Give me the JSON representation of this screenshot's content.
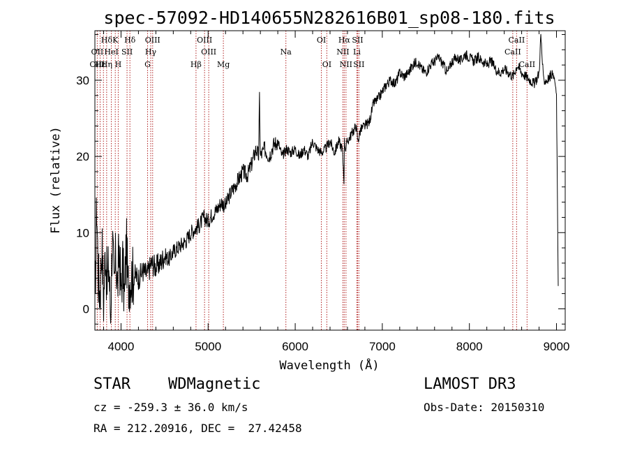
{
  "chart_data": {
    "type": "line",
    "title": "spec-57092-HD140655N282616B01_sp08-180.fits",
    "xlabel": "Wavelength (Å)",
    "ylabel": "Flux (relative)",
    "xlim": [
      3700,
      9100
    ],
    "ylim": [
      -2.8,
      36.5
    ],
    "xticks": [
      4000,
      5000,
      6000,
      7000,
      8000,
      9000
    ],
    "yticks": [
      0,
      10,
      20,
      30
    ],
    "series": [
      {
        "name": "flux",
        "x": [
          3700,
          3720,
          3740,
          3760,
          3780,
          3800,
          3820,
          3840,
          3860,
          3880,
          3900,
          3920,
          3940,
          3960,
          3980,
          4000,
          4020,
          4040,
          4060,
          4080,
          4100,
          4150,
          4200,
          4250,
          4300,
          4350,
          4400,
          4450,
          4500,
          4550,
          4600,
          4650,
          4700,
          4750,
          4800,
          4850,
          4900,
          4950,
          5000,
          5050,
          5100,
          5150,
          5200,
          5250,
          5300,
          5350,
          5400,
          5450,
          5500,
          5550,
          5580,
          5590,
          5600,
          5650,
          5700,
          5750,
          5800,
          5850,
          5900,
          5950,
          6000,
          6050,
          6100,
          6150,
          6200,
          6250,
          6300,
          6350,
          6400,
          6450,
          6500,
          6540,
          6560,
          6565,
          6580,
          6600,
          6650,
          6700,
          6720,
          6750,
          6800,
          6850,
          6900,
          6950,
          7000,
          7050,
          7100,
          7150,
          7200,
          7250,
          7300,
          7350,
          7400,
          7450,
          7500,
          7550,
          7600,
          7650,
          7700,
          7750,
          7800,
          7850,
          7900,
          7950,
          8000,
          8050,
          8100,
          8150,
          8200,
          8250,
          8300,
          8350,
          8400,
          8450,
          8500,
          8550,
          8600,
          8650,
          8700,
          8750,
          8800,
          8820,
          8850,
          8900,
          8950,
          8980,
          9000,
          9010,
          9020
        ],
        "values": [
          0,
          14,
          4,
          2,
          9,
          1,
          8,
          3,
          6,
          -1,
          10,
          2,
          7,
          3,
          8,
          2,
          6,
          1,
          9,
          3,
          4,
          4.5,
          4,
          5,
          4.5,
          6,
          5.5,
          6,
          7,
          6.5,
          7.5,
          8,
          8.5,
          9,
          10,
          10.5,
          11,
          12,
          11.5,
          12.5,
          13,
          14,
          13.5,
          15,
          16,
          17,
          18,
          17.5,
          19,
          21,
          20,
          28,
          20,
          21,
          20,
          21.5,
          22,
          20,
          21,
          20.5,
          21,
          20,
          21,
          20,
          22,
          21,
          20.5,
          21,
          22,
          20.5,
          22,
          21,
          17,
          22,
          21,
          22,
          23,
          24,
          22,
          23.5,
          24,
          24.5,
          27,
          27.5,
          28.5,
          29.5,
          30,
          29.5,
          31,
          30.5,
          31,
          32,
          32.5,
          31.5,
          31,
          32,
          32.5,
          33,
          32,
          31,
          32.5,
          33,
          32.5,
          33.5,
          33,
          32.5,
          33,
          32.5,
          32,
          32.5,
          31.5,
          31,
          31.5,
          31,
          30.5,
          32,
          31,
          30.5,
          30,
          29.5,
          31,
          36,
          30,
          30,
          31,
          30,
          28,
          15,
          3
        ]
      }
    ],
    "spectral_lines": [
      {
        "name": "Hδ",
        "row": 1,
        "x": 3835
      },
      {
        "name": "K",
        "row": 1,
        "x": 3934
      },
      {
        "name": "Hδ",
        "row": 1,
        "x": 4102
      },
      {
        "name": "OIII",
        "row": 1,
        "x": 4363
      },
      {
        "name": "OIII",
        "row": 1,
        "x": 4959
      },
      {
        "name": "OI",
        "row": 1,
        "x": 6300
      },
      {
        "name": "Hα",
        "row": 1,
        "x": 6563
      },
      {
        "name": "SII",
        "row": 1,
        "x": 6716
      },
      {
        "name": "CaII",
        "row": 1,
        "x": 8542
      },
      {
        "name": "OII",
        "row": 2,
        "x": 3727
      },
      {
        "name": "HeI",
        "row": 2,
        "x": 3889
      },
      {
        "name": "SII",
        "row": 2,
        "x": 4069
      },
      {
        "name": "Hγ",
        "row": 2,
        "x": 4341
      },
      {
        "name": "OIII",
        "row": 2,
        "x": 5007
      },
      {
        "name": "Na",
        "row": 2,
        "x": 5893
      },
      {
        "name": "NII",
        "row": 2,
        "x": 6548
      },
      {
        "name": "Li",
        "row": 2,
        "x": 6708
      },
      {
        "name": "CaII",
        "row": 2,
        "x": 8498
      },
      {
        "name": "OIII",
        "row": 3,
        "x": 3727
      },
      {
        "name": "Hε",
        "row": 3,
        "x": 3760
      },
      {
        "name": "Hη",
        "row": 3,
        "x": 3835
      },
      {
        "name": "H",
        "row": 3,
        "x": 3968
      },
      {
        "name": "G",
        "row": 3,
        "x": 4305
      },
      {
        "name": "Hβ",
        "row": 3,
        "x": 4861
      },
      {
        "name": "Mg",
        "row": 3,
        "x": 5175
      },
      {
        "name": "OI",
        "row": 3,
        "x": 6363
      },
      {
        "name": "NII",
        "row": 3,
        "x": 6583
      },
      {
        "name": "SII",
        "row": 3,
        "x": 6731
      },
      {
        "name": "CaII",
        "row": 3,
        "x": 8662
      }
    ],
    "line_markers": [
      3727,
      3760,
      3798,
      3835,
      3889,
      3934,
      3968,
      4069,
      4102,
      4305,
      4341,
      4363,
      4861,
      4959,
      5007,
      5175,
      5893,
      6300,
      6363,
      6548,
      6563,
      6583,
      6708,
      6716,
      6731,
      8498,
      8542,
      8662
    ]
  },
  "info": {
    "object_class": "STAR",
    "subclass": "WDMagnetic",
    "survey": "LAMOST DR3",
    "cz": "cz = -259.3 ± 36.0 km/s",
    "obs_date": "Obs-Date: 20150310",
    "coords": "RA = 212.20916, DEC =  27.42458"
  },
  "colors": {
    "marker": "#b02020",
    "axis": "#000000",
    "spectrum": "#000000"
  }
}
